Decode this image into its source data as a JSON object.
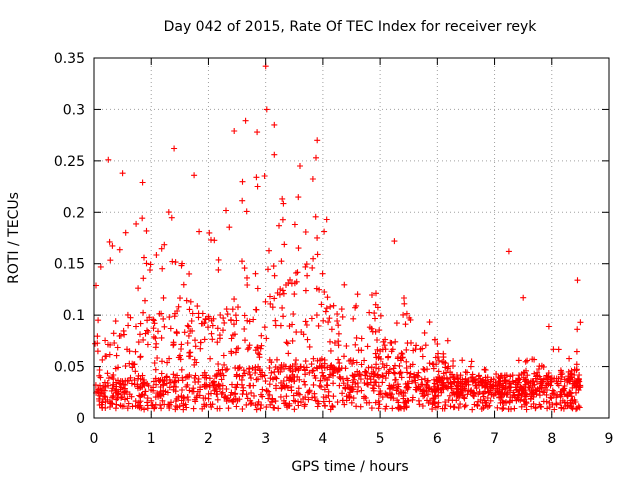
{
  "chart_data": {
    "type": "scatter",
    "title": "Day 042 of 2015, Rate Of TEC Index for receiver reyk",
    "xlabel": "GPS time / hours",
    "ylabel": "ROTI / TECUs",
    "xlim": [
      0,
      9
    ],
    "ylim": [
      0,
      0.35
    ],
    "xticks": [
      0,
      1,
      2,
      3,
      4,
      5,
      6,
      7,
      8,
      9
    ],
    "xtick_labels": [
      "0",
      "1",
      "2",
      "3",
      "4",
      "5",
      "6",
      "7",
      "8",
      "9"
    ],
    "yticks": [
      0,
      0.05,
      0.1,
      0.15,
      0.2,
      0.25,
      0.3,
      0.35
    ],
    "ytick_labels": [
      "0",
      "0.05",
      "0.1",
      "0.15",
      "0.2",
      "0.25",
      "0.3",
      "0.35"
    ],
    "grid": true,
    "marker": "+",
    "series_color": "#ff0000",
    "highlights": [
      {
        "x": 0.25,
        "y": 0.251
      },
      {
        "x": 0.5,
        "y": 0.238
      },
      {
        "x": 0.85,
        "y": 0.229
      },
      {
        "x": 1.4,
        "y": 0.262
      },
      {
        "x": 1.75,
        "y": 0.236
      },
      {
        "x": 2.45,
        "y": 0.279
      },
      {
        "x": 2.65,
        "y": 0.289
      },
      {
        "x": 2.85,
        "y": 0.278
      },
      {
        "x": 3.0,
        "y": 0.342
      },
      {
        "x": 3.02,
        "y": 0.3
      },
      {
        "x": 3.15,
        "y": 0.285
      },
      {
        "x": 3.15,
        "y": 0.256
      },
      {
        "x": 3.6,
        "y": 0.245
      },
      {
        "x": 3.9,
        "y": 0.27
      },
      {
        "x": 3.88,
        "y": 0.253
      },
      {
        "x": 5.25,
        "y": 0.172
      },
      {
        "x": 7.25,
        "y": 0.162
      },
      {
        "x": 7.5,
        "y": 0.117
      },
      {
        "x": 7.95,
        "y": 0.089
      },
      {
        "x": 8.45,
        "y": 0.134
      },
      {
        "x": 8.5,
        "y": 0.093
      }
    ],
    "profile": [
      {
        "x": 0.0,
        "base": 0.02,
        "mid": 0.06,
        "peak": 0.14
      },
      {
        "x": 0.5,
        "base": 0.02,
        "mid": 0.08,
        "peak": 0.2
      },
      {
        "x": 1.0,
        "base": 0.02,
        "mid": 0.09,
        "peak": 0.2
      },
      {
        "x": 1.5,
        "base": 0.025,
        "mid": 0.1,
        "peak": 0.22
      },
      {
        "x": 2.0,
        "base": 0.025,
        "mid": 0.09,
        "peak": 0.18
      },
      {
        "x": 2.5,
        "base": 0.03,
        "mid": 0.1,
        "peak": 0.23
      },
      {
        "x": 3.0,
        "base": 0.03,
        "mid": 0.11,
        "peak": 0.25
      },
      {
        "x": 3.5,
        "base": 0.035,
        "mid": 0.13,
        "peak": 0.22
      },
      {
        "x": 3.9,
        "base": 0.04,
        "mid": 0.15,
        "peak": 0.24
      },
      {
        "x": 4.3,
        "base": 0.03,
        "mid": 0.08,
        "peak": 0.15
      },
      {
        "x": 4.8,
        "base": 0.025,
        "mid": 0.06,
        "peak": 0.12
      },
      {
        "x": 5.3,
        "base": 0.025,
        "mid": 0.07,
        "peak": 0.14
      },
      {
        "x": 6.0,
        "base": 0.02,
        "mid": 0.05,
        "peak": 0.1
      },
      {
        "x": 6.5,
        "base": 0.02,
        "mid": 0.035,
        "peak": 0.06
      },
      {
        "x": 7.0,
        "base": 0.02,
        "mid": 0.03,
        "peak": 0.05
      },
      {
        "x": 7.5,
        "base": 0.02,
        "mid": 0.035,
        "peak": 0.08
      },
      {
        "x": 8.0,
        "base": 0.02,
        "mid": 0.035,
        "peak": 0.07
      },
      {
        "x": 8.5,
        "base": 0.02,
        "mid": 0.04,
        "peak": 0.09
      }
    ]
  }
}
